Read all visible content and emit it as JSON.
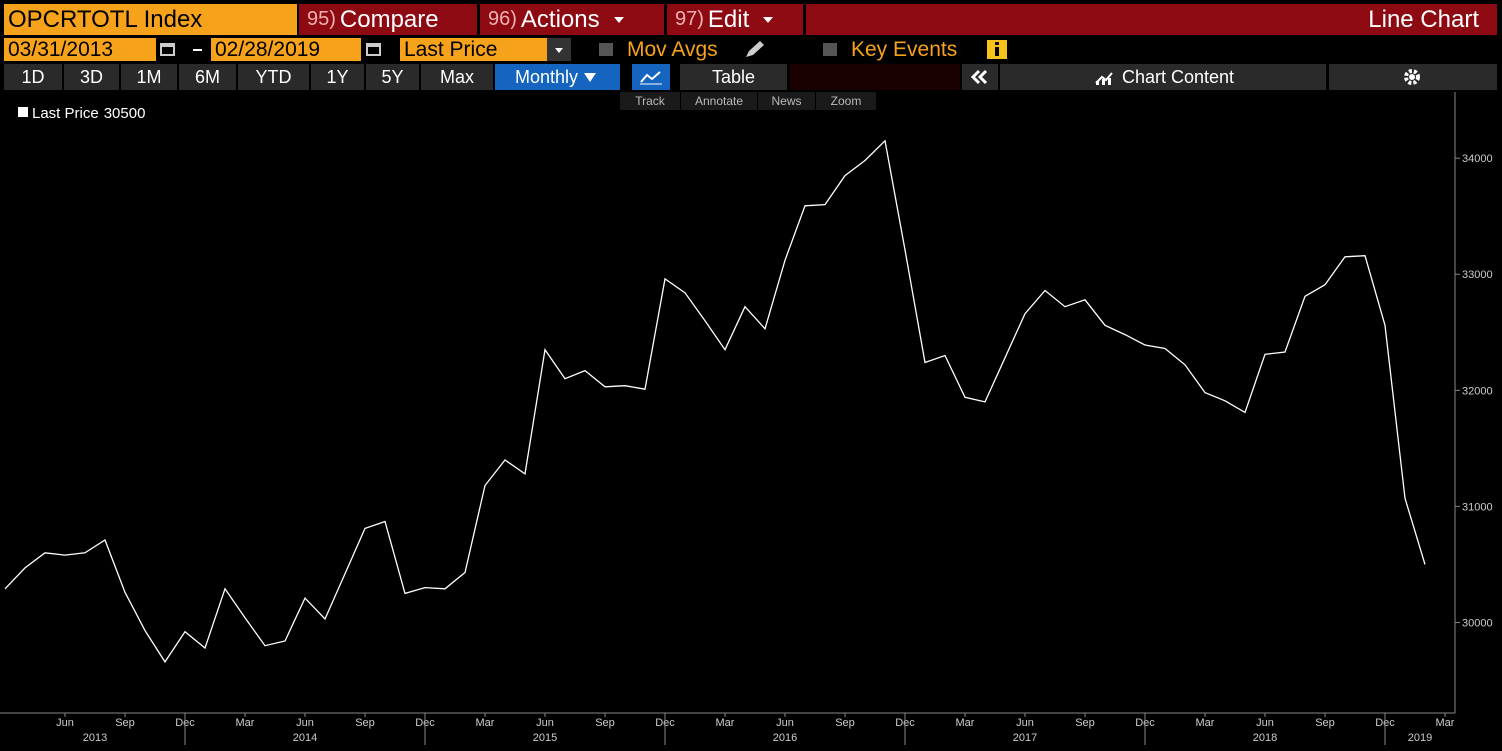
{
  "toolbar": {
    "security": "OPCRTOTL Index",
    "buttons": [
      {
        "num": "95)",
        "label": "Compare"
      },
      {
        "num": "96)",
        "label": "Actions"
      },
      {
        "num": "97)",
        "label": "Edit"
      }
    ],
    "view": "Line Chart",
    "start_date": "03/31/2013",
    "end_date": "02/28/2019",
    "field": "Last Price",
    "mov_avgs": "Mov Avgs",
    "key_events": "Key Events",
    "ranges": [
      "1D",
      "3D",
      "1M",
      "6M",
      "YTD",
      "1Y",
      "5Y",
      "Max"
    ],
    "period": "Monthly",
    "table": "Table",
    "chart_content": "Chart Content",
    "tools": [
      "Track",
      "Annotate",
      "News",
      "Zoom"
    ]
  },
  "chart_data": {
    "type": "line",
    "x": [
      "2013-03",
      "2013-04",
      "2013-05",
      "2013-06",
      "2013-07",
      "2013-08",
      "2013-09",
      "2013-10",
      "2013-11",
      "2013-12",
      "2014-01",
      "2014-02",
      "2014-03",
      "2014-04",
      "2014-05",
      "2014-06",
      "2014-07",
      "2014-08",
      "2014-09",
      "2014-10",
      "2014-11",
      "2014-12",
      "2015-01",
      "2015-02",
      "2015-03",
      "2015-04",
      "2015-05",
      "2015-06",
      "2015-07",
      "2015-08",
      "2015-09",
      "2015-10",
      "2015-11",
      "2015-12",
      "2016-01",
      "2016-02",
      "2016-03",
      "2016-04",
      "2016-05",
      "2016-06",
      "2016-07",
      "2016-08",
      "2016-09",
      "2016-10",
      "2016-11",
      "2016-12",
      "2017-01",
      "2017-02",
      "2017-03",
      "2017-04",
      "2017-05",
      "2017-06",
      "2017-07",
      "2017-08",
      "2017-09",
      "2017-10",
      "2017-11",
      "2017-12",
      "2018-01",
      "2018-02",
      "2018-03",
      "2018-04",
      "2018-05",
      "2018-06",
      "2018-07",
      "2018-08",
      "2018-09",
      "2018-10",
      "2018-11",
      "2018-12",
      "2019-01",
      "2019-02"
    ],
    "series": [
      {
        "name": "Last Price",
        "color": "#ffffff",
        "values": [
          30290,
          30470,
          30600,
          30580,
          30600,
          30710,
          30260,
          29930,
          29660,
          29920,
          29780,
          30290,
          30040,
          29800,
          29840,
          30210,
          30030,
          30420,
          30810,
          30870,
          30250,
          30300,
          30290,
          30430,
          31180,
          31400,
          31280,
          32350,
          32100,
          32170,
          32030,
          32040,
          32010,
          32960,
          32840,
          32600,
          32350,
          32720,
          32530,
          33120,
          33590,
          33600,
          33850,
          33980,
          34150,
          33210,
          32240,
          32300,
          31940,
          31900,
          32280,
          32660,
          32860,
          32720,
          32780,
          32560,
          32480,
          32390,
          32360,
          32220,
          31980,
          31910,
          31810,
          32310,
          32330,
          32810,
          32910,
          33150,
          33160,
          32560,
          31070,
          30500
        ]
      }
    ],
    "xlim": [
      "2013-03",
      "2019-03"
    ],
    "xticks": [
      {
        "value": "2013-06",
        "label": "Jun"
      },
      {
        "value": "2013-09",
        "label": "Sep"
      },
      {
        "value": "2013-12",
        "label": "Dec"
      },
      {
        "value": "2014-03",
        "label": "Mar"
      },
      {
        "value": "2014-06",
        "label": "Jun"
      },
      {
        "value": "2014-09",
        "label": "Sep"
      },
      {
        "value": "2014-12",
        "label": "Dec"
      },
      {
        "value": "2015-03",
        "label": "Mar"
      },
      {
        "value": "2015-06",
        "label": "Jun"
      },
      {
        "value": "2015-09",
        "label": "Sep"
      },
      {
        "value": "2015-12",
        "label": "Dec"
      },
      {
        "value": "2016-03",
        "label": "Mar"
      },
      {
        "value": "2016-06",
        "label": "Jun"
      },
      {
        "value": "2016-09",
        "label": "Sep"
      },
      {
        "value": "2016-12",
        "label": "Dec"
      },
      {
        "value": "2017-03",
        "label": "Mar"
      },
      {
        "value": "2017-06",
        "label": "Jun"
      },
      {
        "value": "2017-09",
        "label": "Sep"
      },
      {
        "value": "2017-12",
        "label": "Dec"
      },
      {
        "value": "2018-03",
        "label": "Mar"
      },
      {
        "value": "2018-06",
        "label": "Jun"
      },
      {
        "value": "2018-09",
        "label": "Sep"
      },
      {
        "value": "2018-12",
        "label": "Dec"
      },
      {
        "value": "2019-03",
        "label": "Mar"
      }
    ],
    "xyears": [
      2013,
      2014,
      2015,
      2016,
      2017,
      2018,
      2019
    ],
    "ylim": [
      29220,
      34570
    ],
    "yticks": [
      30000,
      31000,
      32000,
      33000,
      34000
    ],
    "y_axis_side": "right"
  }
}
